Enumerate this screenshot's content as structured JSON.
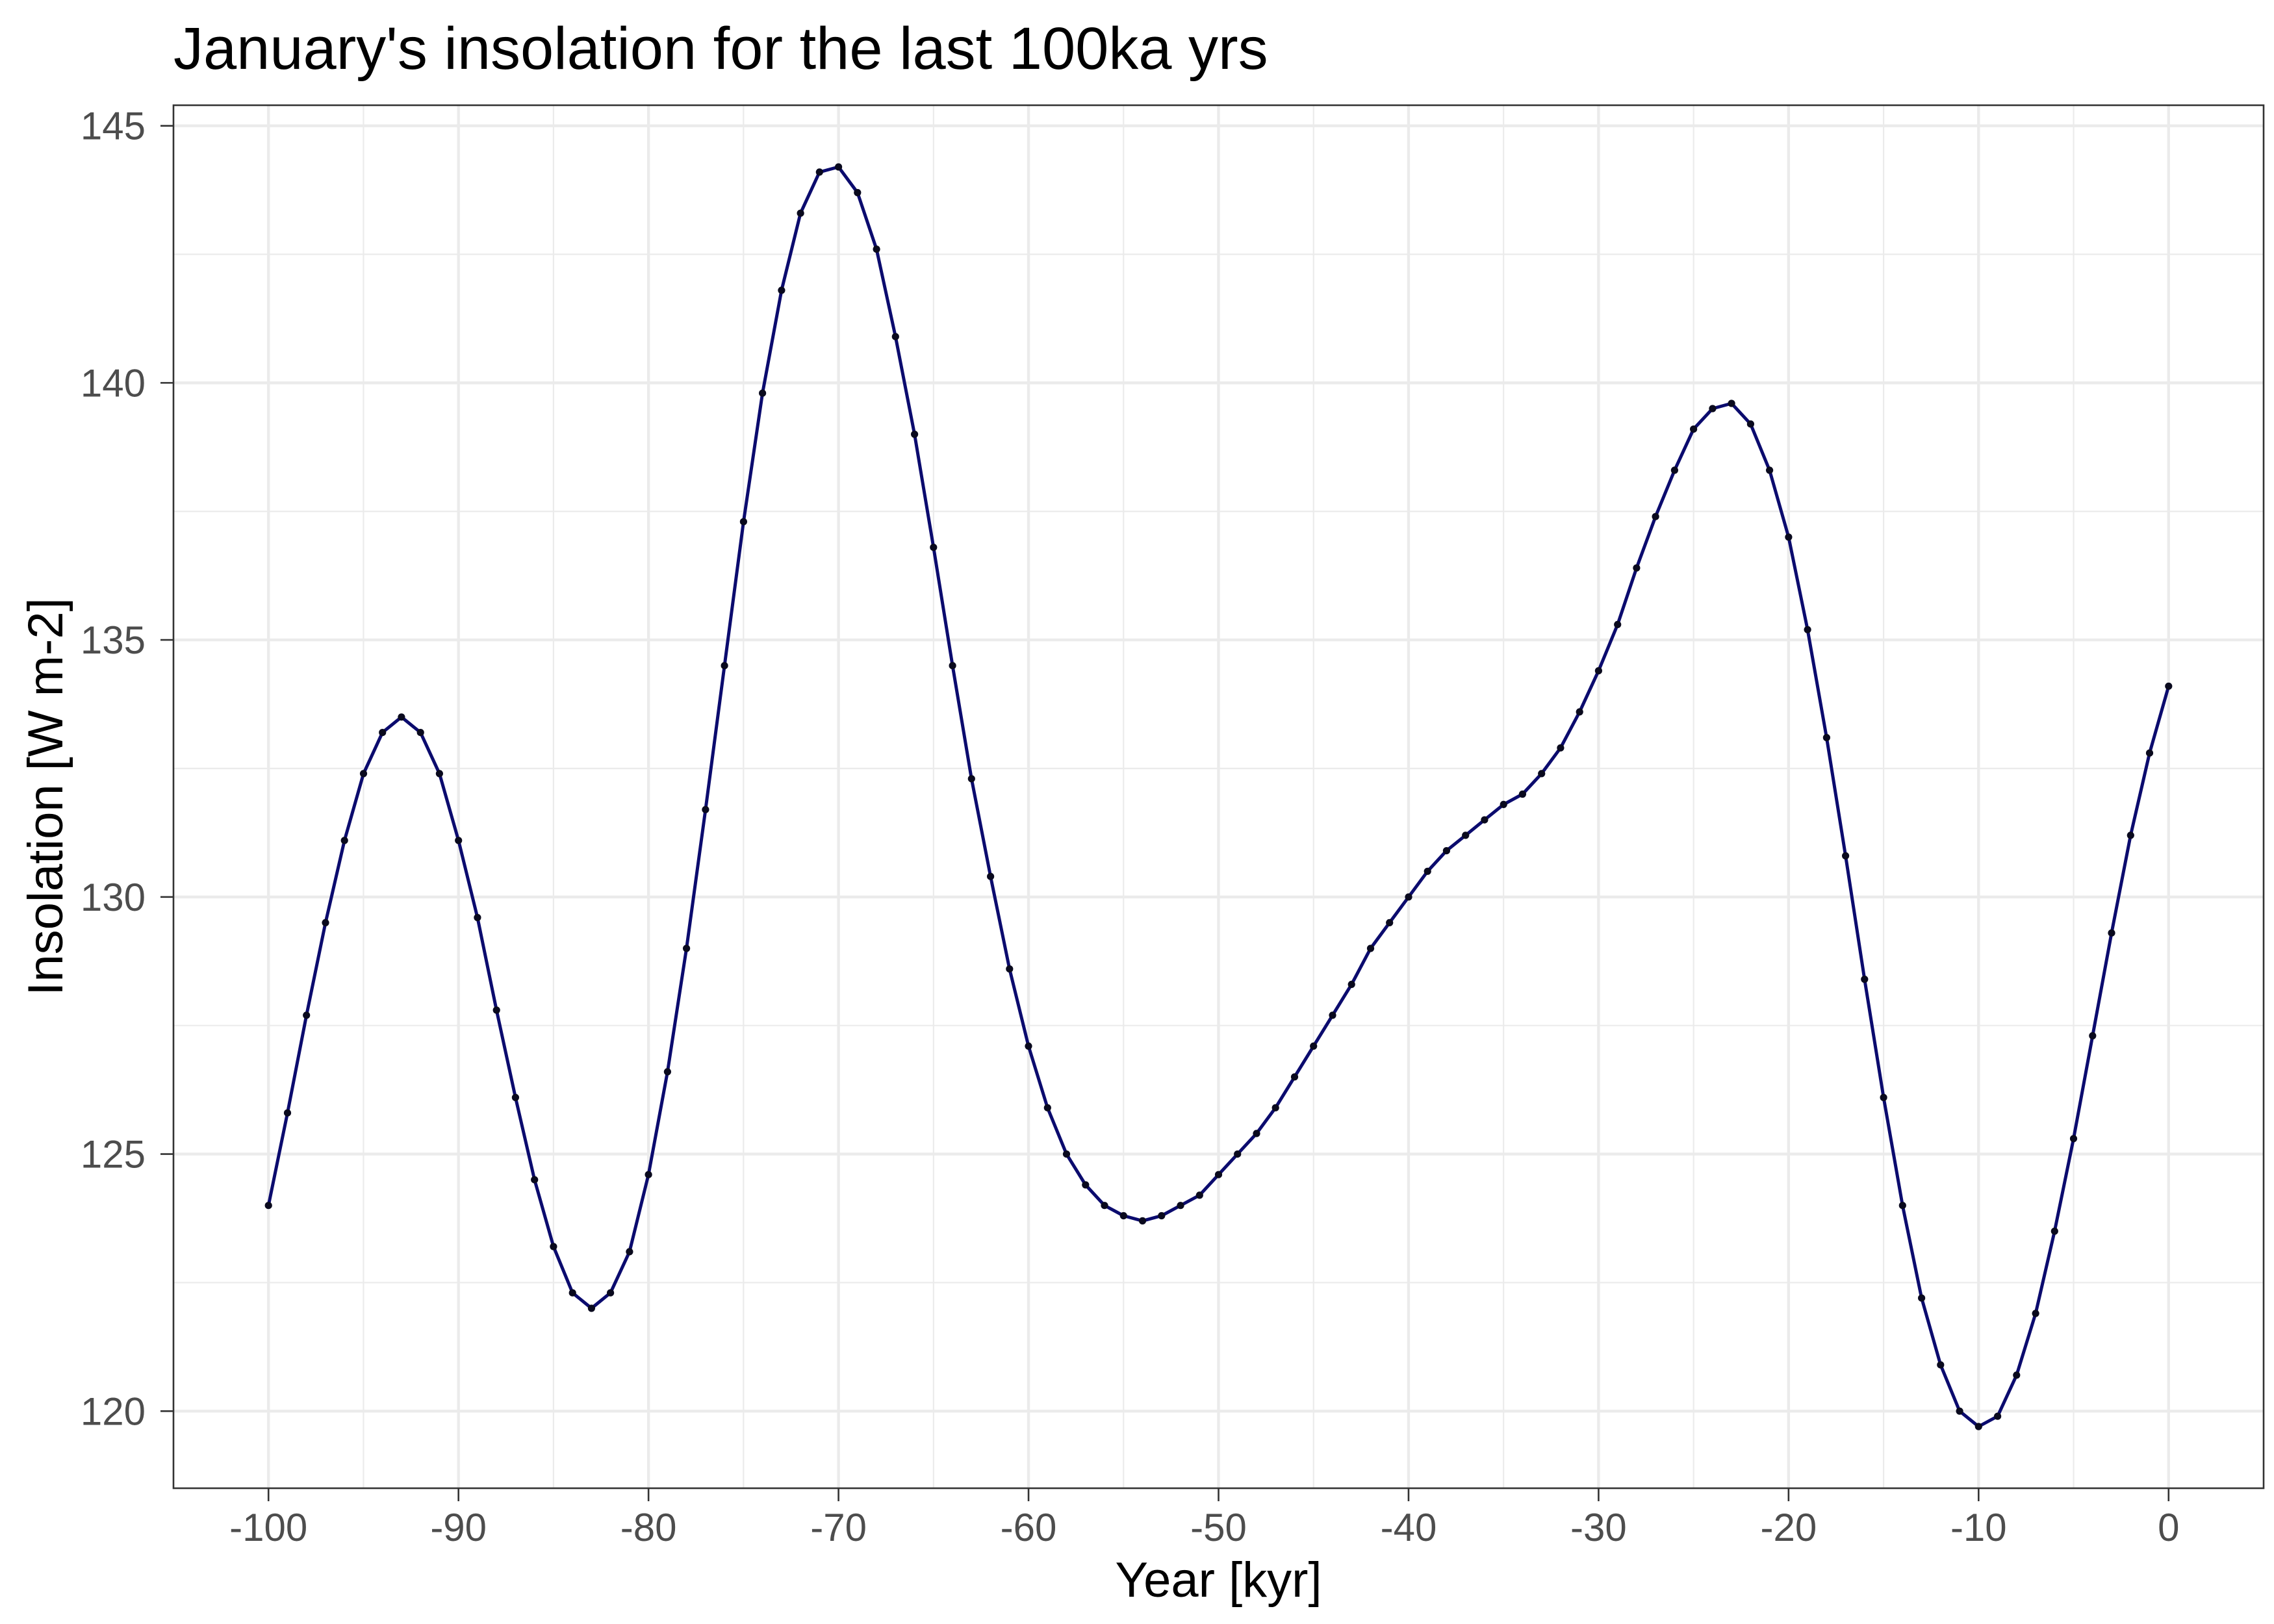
{
  "chart_data": {
    "type": "line",
    "title": "January's insolation for the last 100ka yrs",
    "xlabel": "Year [kyr]",
    "ylabel": "Insolation [W m-2]",
    "x": [
      -100,
      -99,
      -98,
      -97,
      -96,
      -95,
      -94,
      -93,
      -92,
      -91,
      -90,
      -89,
      -88,
      -87,
      -86,
      -85,
      -84,
      -83,
      -82,
      -81,
      -80,
      -79,
      -78,
      -77,
      -76,
      -75,
      -74,
      -73,
      -72,
      -71,
      -70,
      -69,
      -68,
      -67,
      -66,
      -65,
      -64,
      -63,
      -62,
      -61,
      -60,
      -59,
      -58,
      -57,
      -56,
      -55,
      -54,
      -53,
      -52,
      -51,
      -50,
      -49,
      -48,
      -47,
      -46,
      -45,
      -44,
      -43,
      -42,
      -41,
      -40,
      -39,
      -38,
      -37,
      -36,
      -35,
      -34,
      -33,
      -32,
      -31,
      -30,
      -29,
      -28,
      -27,
      -26,
      -25,
      -24,
      -23,
      -22,
      -21,
      -20,
      -19,
      -18,
      -17,
      -16,
      -15,
      -14,
      -13,
      -12,
      -11,
      -10,
      -9,
      -8,
      -7,
      -6,
      -5,
      -4,
      -3,
      -2,
      -1,
      0
    ],
    "series": [
      {
        "values": [
          124.0,
          125.8,
          127.7,
          129.5,
          131.1,
          132.4,
          133.2,
          133.5,
          133.2,
          132.4,
          131.1,
          129.6,
          127.8,
          126.1,
          124.5,
          123.2,
          122.3,
          122.0,
          122.3,
          123.1,
          124.6,
          126.6,
          129.0,
          131.7,
          134.5,
          137.3,
          139.8,
          141.8,
          143.3,
          144.1,
          144.2,
          143.7,
          142.6,
          140.9,
          139.0,
          136.8,
          134.5,
          132.3,
          130.4,
          128.6,
          127.1,
          125.9,
          125.0,
          124.4,
          124.0,
          123.8,
          123.7,
          123.8,
          124.0,
          124.2,
          124.6,
          125.0,
          125.4,
          125.9,
          126.5,
          127.1,
          127.7,
          128.3,
          129.0,
          129.5,
          130.0,
          130.5,
          130.9,
          131.2,
          131.5,
          131.8,
          132.0,
          132.4,
          132.9,
          133.6,
          134.4,
          135.3,
          136.4,
          137.4,
          138.3,
          139.1,
          139.5,
          139.6,
          139.2,
          138.3,
          137.0,
          135.2,
          133.1,
          130.8,
          128.4,
          126.1,
          124.0,
          122.2,
          120.9,
          120.0,
          119.7,
          119.9,
          120.7,
          121.9,
          123.5,
          125.3,
          127.3,
          129.3,
          131.2,
          132.8,
          134.1
        ]
      }
    ],
    "xlim": [
      -105,
      5
    ],
    "ylim": [
      118.5,
      145.4
    ],
    "x_ticks": [
      -100,
      -90,
      -80,
      -70,
      -60,
      -50,
      -40,
      -30,
      -20,
      -10,
      0
    ],
    "y_ticks": [
      120,
      125,
      130,
      135,
      140,
      145
    ],
    "grid": {
      "major": true,
      "minor": true
    },
    "markers": true,
    "legend": "none",
    "colors": {
      "line": "#0b0b6e",
      "points": "#0a0a1e",
      "panel_border": "#333333",
      "grid": "#ebebeb",
      "ticks": "#333333",
      "tick_text": "#4d4d4d",
      "text": "#000000",
      "background": "#ffffff"
    }
  }
}
